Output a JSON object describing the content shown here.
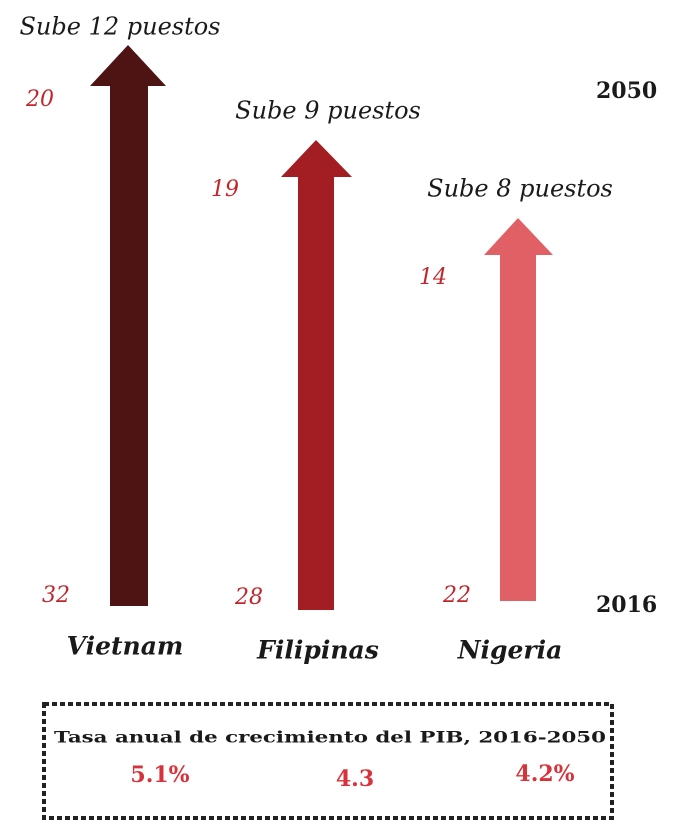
{
  "items": [
    {
      "label": "Sube 12 puestos",
      "rank_2050": 20,
      "rank_2016": 32,
      "name": "Vietnam",
      "growth": "5.1%"
    },
    {
      "label": "Sube 9 puestos",
      "rank_2050": 19,
      "rank_2016": 28,
      "name": "Filipinas",
      "growth": "4.3"
    },
    {
      "label": "Sube 8 puestos",
      "rank_2050": 14,
      "rank_2016": 22,
      "name": "Nigeria",
      "growth": "4.2%"
    }
  ],
  "years": {
    "top": "2050",
    "bottom": "2016"
  },
  "box_title": "Tasa anual de crecimiento del PIB, 2016-2050"
}
